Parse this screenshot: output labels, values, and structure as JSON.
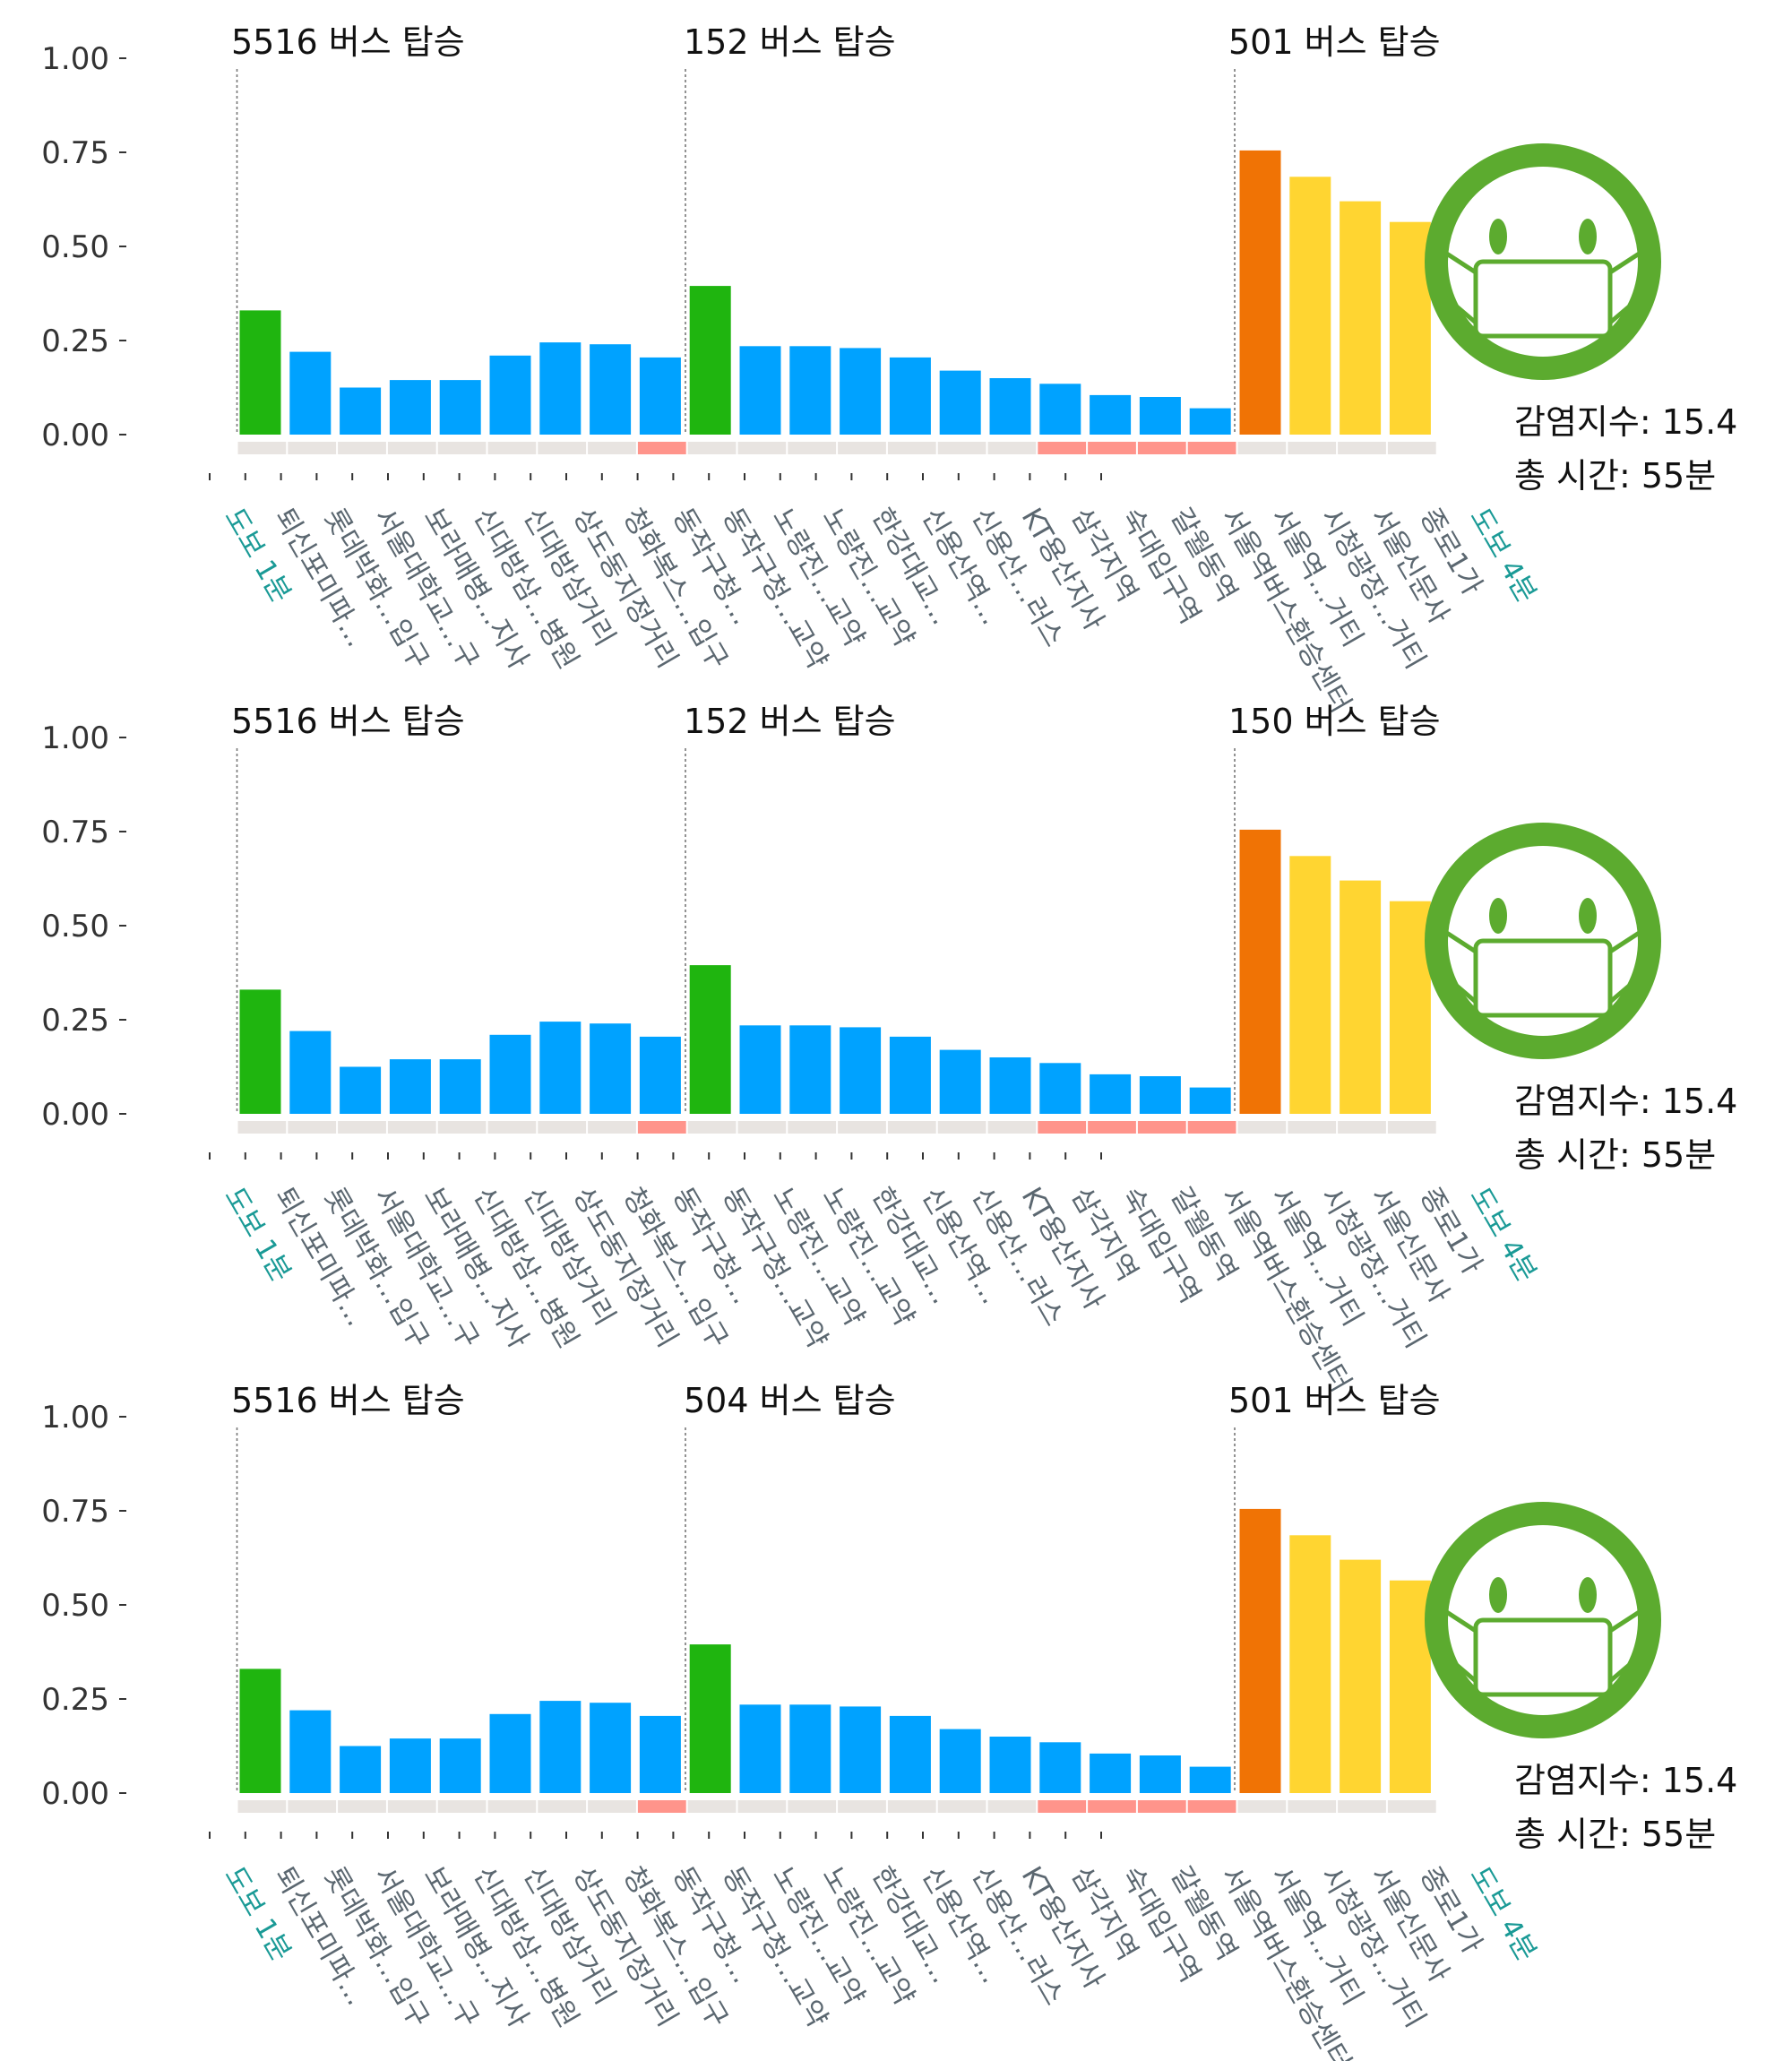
{
  "y_ticks": [
    "1.00",
    "0.75",
    "0.50",
    "0.25",
    "0.00"
  ],
  "colors": {
    "walk": "#1fb50f",
    "normal": "#00a2ff",
    "high": "#f07305",
    "mid": "#ffd531",
    "strip_normal": "#e8e4e1",
    "strip_alert": "#ff948b",
    "face": "#5cab2f",
    "label_text": "#5b6770",
    "walk_text": "#1a9a96"
  },
  "stations": [
    "도보 1분",
    "퇴신포미파...",
    "롯데박화...입구",
    "서울대학교...구",
    "보라매병...지사",
    "신대방삼...병원",
    "신대방삼거리",
    "상도동지정거리",
    "청화복스...입구",
    "동작구청...",
    "동작구청...교약",
    "노량진...교약",
    "노량진...교약",
    "한강대교...",
    "신용산역...",
    "신용산...러스",
    "KT용산지사",
    "삼각지역",
    "숙대입구역",
    "갈월동역",
    "서울역버스환승센터",
    "서울역...거티",
    "시청광장...거티",
    "서울신문사",
    "종로1가",
    "도보 4분"
  ],
  "chart_data": [
    {
      "type": "bar",
      "bus_labels": [
        "5516 버스 탑승",
        "152 버스 탑승",
        "501 버스 탑승"
      ],
      "values": [
        0.33,
        0.22,
        0.125,
        0.145,
        0.145,
        0.21,
        0.245,
        0.24,
        0.205,
        0.395,
        0.235,
        0.235,
        0.23,
        0.205,
        0.17,
        0.15,
        0.135,
        0.105,
        0.1,
        0.07,
        0.755,
        0.685,
        0.62,
        0.565
      ],
      "bar_colors": [
        "walk",
        "normal",
        "normal",
        "normal",
        "normal",
        "normal",
        "normal",
        "normal",
        "normal",
        "walk",
        "normal",
        "normal",
        "normal",
        "normal",
        "normal",
        "normal",
        "normal",
        "normal",
        "normal",
        "normal",
        "high",
        "mid",
        "mid",
        "mid"
      ],
      "alerts": [
        false,
        false,
        false,
        false,
        false,
        false,
        false,
        false,
        true,
        false,
        false,
        false,
        false,
        false,
        false,
        false,
        true,
        true,
        true,
        true,
        false,
        false,
        false,
        false
      ],
      "ylim": [
        0,
        1
      ],
      "infection_index": "감염지수: 15.4",
      "total_time": "총 시간: 55분"
    },
    {
      "type": "bar",
      "bus_labels": [
        "5516 버스 탑승",
        "152 버스 탑승",
        "150 버스 탑승"
      ],
      "values": [
        0.33,
        0.22,
        0.125,
        0.145,
        0.145,
        0.21,
        0.245,
        0.24,
        0.205,
        0.395,
        0.235,
        0.235,
        0.23,
        0.205,
        0.17,
        0.15,
        0.135,
        0.105,
        0.1,
        0.07,
        0.755,
        0.685,
        0.62,
        0.565
      ],
      "bar_colors": [
        "walk",
        "normal",
        "normal",
        "normal",
        "normal",
        "normal",
        "normal",
        "normal",
        "normal",
        "walk",
        "normal",
        "normal",
        "normal",
        "normal",
        "normal",
        "normal",
        "normal",
        "normal",
        "normal",
        "normal",
        "high",
        "mid",
        "mid",
        "mid"
      ],
      "alerts": [
        false,
        false,
        false,
        false,
        false,
        false,
        false,
        false,
        true,
        false,
        false,
        false,
        false,
        false,
        false,
        false,
        true,
        true,
        true,
        true,
        false,
        false,
        false,
        false
      ],
      "ylim": [
        0,
        1
      ],
      "infection_index": "감염지수: 15.4",
      "total_time": "총 시간: 55분"
    },
    {
      "type": "bar",
      "bus_labels": [
        "5516 버스 탑승",
        "504 버스 탑승",
        "501 버스 탑승"
      ],
      "values": [
        0.33,
        0.22,
        0.125,
        0.145,
        0.145,
        0.21,
        0.245,
        0.24,
        0.205,
        0.395,
        0.235,
        0.235,
        0.23,
        0.205,
        0.17,
        0.15,
        0.135,
        0.105,
        0.1,
        0.07,
        0.755,
        0.685,
        0.62,
        0.565
      ],
      "bar_colors": [
        "walk",
        "normal",
        "normal",
        "normal",
        "normal",
        "normal",
        "normal",
        "normal",
        "normal",
        "walk",
        "normal",
        "normal",
        "normal",
        "normal",
        "normal",
        "normal",
        "normal",
        "normal",
        "normal",
        "normal",
        "high",
        "mid",
        "mid",
        "mid"
      ],
      "alerts": [
        false,
        false,
        false,
        false,
        false,
        false,
        false,
        false,
        true,
        false,
        false,
        false,
        false,
        false,
        false,
        false,
        true,
        true,
        true,
        true,
        false,
        false,
        false,
        false
      ],
      "ylim": [
        0,
        1
      ],
      "infection_index": "감염지수: 15.4",
      "total_time": "총 시간: 55분"
    }
  ]
}
